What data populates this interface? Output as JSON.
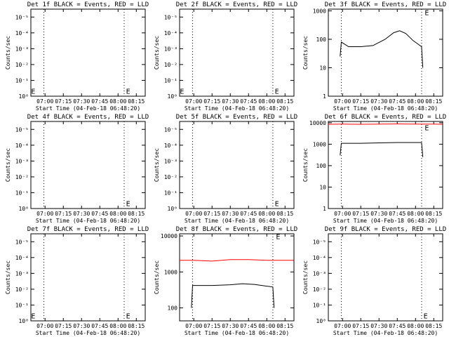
{
  "chart_data": [
    {
      "type": "line",
      "title": "Det 1f BLACK = Events, RED = LLD",
      "ylabel": "Counts/sec",
      "xlabel": "Start Time (04-Feb-18 06:48:20)",
      "yscale": "log",
      "x_ticks": [
        "07:00",
        "07:15",
        "07:30",
        "07:45",
        "08:00",
        "08:15"
      ],
      "y_ticks": [
        "10⁰",
        "10⁻¹",
        "10⁻²",
        "10⁻³",
        "10⁻⁴",
        "10⁻⁵"
      ],
      "event_markers": [
        "E",
        "E"
      ],
      "series": []
    },
    {
      "type": "line",
      "title": "Det 2f BLACK = Events, RED = LLD",
      "ylabel": "Counts/sec",
      "xlabel": "Start Time (04-Feb-18 06:48:20)",
      "yscale": "log",
      "x_ticks": [
        "07:00",
        "07:15",
        "07:30",
        "07:45",
        "08:00",
        "08:15"
      ],
      "y_ticks": [
        "10⁰",
        "10⁻¹",
        "10⁻²",
        "10⁻³",
        "10⁻⁴",
        "10⁻⁵"
      ],
      "event_markers": [
        "E",
        "E"
      ],
      "series": []
    },
    {
      "type": "line",
      "title": "Det 3f BLACK = Events, RED = LLD",
      "ylabel": "Counts/sec",
      "xlabel": "Start Time (04-Feb-18 06:48:20)",
      "yscale": "log",
      "x_ticks": [
        "07:00",
        "07:15",
        "07:30",
        "07:45",
        "08:00",
        "08:15"
      ],
      "y_ticks": [
        "1000",
        "100",
        "10",
        "1"
      ],
      "event_markers": [
        "E"
      ],
      "series": [
        {
          "color": "#000000",
          "x": [
            "06:58",
            "06:59",
            "07:05",
            "07:15",
            "07:25",
            "07:35",
            "07:42",
            "07:47",
            "07:52",
            "07:58",
            "08:05",
            "08:06"
          ],
          "y": [
            25,
            80,
            55,
            55,
            60,
            100,
            170,
            200,
            160,
            90,
            55,
            10
          ]
        }
      ]
    },
    {
      "type": "line",
      "title": "Det 4f BLACK = Events, RED = LLD",
      "ylabel": "Counts/sec",
      "xlabel": "Start Time (04-Feb-18 06:48:20)",
      "yscale": "log",
      "x_ticks": [
        "07:00",
        "07:15",
        "07:30",
        "07:45",
        "08:00",
        "08:15"
      ],
      "y_ticks": [
        "10⁰",
        "10⁻¹",
        "10⁻²",
        "10⁻³",
        "10⁻⁴",
        "10⁻⁵"
      ],
      "event_markers": [
        "E"
      ],
      "series": []
    },
    {
      "type": "line",
      "title": "Det 5f BLACK = Events, RED = LLD",
      "ylabel": "Counts/sec",
      "xlabel": "Start Time (04-Feb-18 06:48:20)",
      "yscale": "log",
      "x_ticks": [
        "07:00",
        "07:15",
        "07:30",
        "07:45",
        "08:00",
        "08:15"
      ],
      "y_ticks": [
        "10⁰",
        "10⁻¹",
        "10⁻²",
        "10⁻³",
        "10⁻⁴",
        "10⁻⁵"
      ],
      "event_markers": [
        "E"
      ],
      "series": []
    },
    {
      "type": "line",
      "title": "Det 6f BLACK = Events, RED = LLD",
      "ylabel": "Counts/sec",
      "xlabel": "Start Time (04-Feb-18 06:48:20)",
      "yscale": "log",
      "x_ticks": [
        "07:00",
        "07:15",
        "07:30",
        "07:45",
        "08:00",
        "08:15"
      ],
      "y_ticks": [
        "10000",
        "1000",
        "100",
        "10",
        "1"
      ],
      "event_markers": [
        "E"
      ],
      "series": [
        {
          "color": "#ff0000",
          "x": [
            "06:48",
            "07:00",
            "07:15",
            "07:30",
            "07:45",
            "08:00",
            "08:15",
            "08:22"
          ],
          "y": [
            8500,
            8600,
            8500,
            8700,
            8800,
            8700,
            8600,
            8500
          ]
        },
        {
          "color": "#000000",
          "x": [
            "06:58",
            "06:59",
            "07:15",
            "07:30",
            "07:45",
            "08:00",
            "08:05",
            "08:06"
          ],
          "y": [
            300,
            1100,
            1100,
            1150,
            1200,
            1200,
            1200,
            250
          ]
        }
      ]
    },
    {
      "type": "line",
      "title": "Det 7f BLACK = Events, RED = LLD",
      "ylabel": "Counts/sec",
      "xlabel": "Start Time (04-Feb-18 06:48:20)",
      "yscale": "log",
      "x_ticks": [
        "07:00",
        "07:15",
        "07:30",
        "07:45",
        "08:00",
        "08:15"
      ],
      "y_ticks": [
        "10⁰",
        "10⁻¹",
        "10⁻²",
        "10⁻³",
        "10⁻⁴",
        "10⁻⁵"
      ],
      "event_markers": [
        "E",
        "E"
      ],
      "series": []
    },
    {
      "type": "line",
      "title": "Det 8f BLACK = Events, RED = LLD",
      "ylabel": "Counts/sec",
      "xlabel": "Start Time (04-Feb-18 06:48:20)",
      "yscale": "log",
      "x_ticks": [
        "07:00",
        "07:15",
        "07:30",
        "07:45",
        "08:00",
        "08:15"
      ],
      "y_ticks": [
        "10000",
        "1000",
        "100"
      ],
      "event_markers": [
        "E"
      ],
      "series": [
        {
          "color": "#ff0000",
          "x": [
            "06:48",
            "07:00",
            "07:15",
            "07:30",
            "07:45",
            "08:00",
            "08:15",
            "08:22"
          ],
          "y": [
            2100,
            2100,
            2000,
            2200,
            2200,
            2100,
            2100,
            2100
          ]
        },
        {
          "color": "#000000",
          "x": [
            "06:58",
            "06:59",
            "07:15",
            "07:30",
            "07:40",
            "07:50",
            "08:05",
            "08:06"
          ],
          "y": [
            100,
            420,
            420,
            440,
            470,
            450,
            380,
            100
          ]
        }
      ]
    },
    {
      "type": "line",
      "title": "Det 9f BLACK = Events, RED = LLD",
      "ylabel": "Counts/sec",
      "xlabel": "Start Time (04-Feb-18 06:48:20)",
      "yscale": "log",
      "x_ticks": [
        "07:00",
        "07:15",
        "07:30",
        "07:45",
        "08:00",
        "08:15"
      ],
      "y_ticks": [
        "10⁰",
        "10⁻¹",
        "10⁻²",
        "10⁻³",
        "10⁻⁴",
        "10⁻⁵"
      ],
      "event_markers": [
        "E"
      ],
      "series": []
    }
  ]
}
